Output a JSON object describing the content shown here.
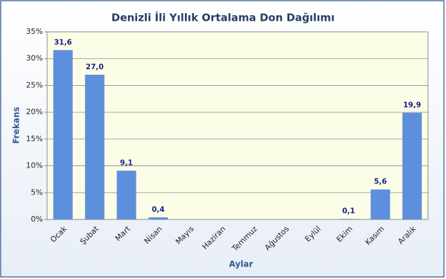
{
  "chart_data": {
    "type": "bar",
    "title": "Denizli İli Yıllık Ortalama Don Dağılımı",
    "x_label": "Aylar",
    "y_label": "Frekans",
    "categories": [
      "Ocak",
      "Şubat",
      "Mart",
      "Nisan",
      "Mayıs",
      "Haziran",
      "Temmuz",
      "Ağustos",
      "Eylül",
      "Ekim",
      "Kasım",
      "Aralık"
    ],
    "values": [
      31.6,
      27.0,
      9.1,
      0.4,
      null,
      null,
      null,
      null,
      null,
      0.1,
      5.6,
      19.9
    ],
    "value_labels": [
      "31,6",
      "27,0",
      "9,1",
      "0,4",
      null,
      null,
      null,
      null,
      null,
      "0,1",
      "5,6",
      "19,9"
    ],
    "color": "#5e8fdc",
    "ylim": [
      0,
      35
    ],
    "yticks": [
      {
        "value": 0,
        "label": "0%"
      },
      {
        "value": 5,
        "label": "5%"
      },
      {
        "value": 10,
        "label": "10%"
      },
      {
        "value": 15,
        "label": "15%"
      },
      {
        "value": 20,
        "label": "20%"
      },
      {
        "value": 25,
        "label": "25%"
      },
      {
        "value": 30,
        "label": "30%"
      },
      {
        "value": 35,
        "label": "35%"
      }
    ],
    "grid": true
  }
}
